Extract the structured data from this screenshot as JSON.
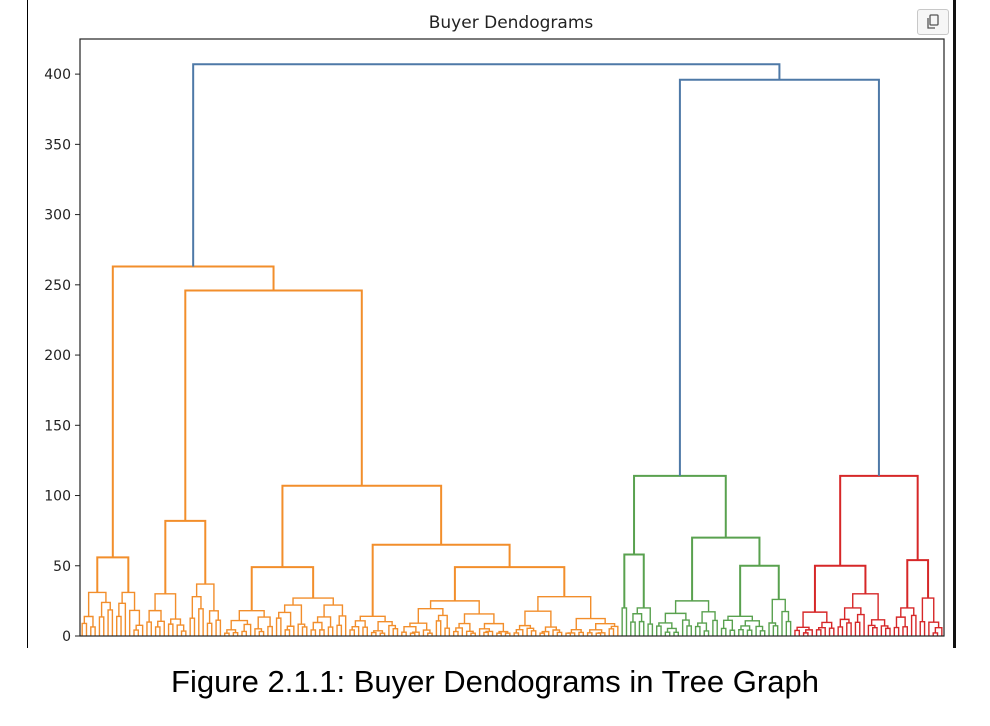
{
  "chart_data": {
    "type": "dendrogram",
    "title": "Buyer Dendograms",
    "xlabel": "",
    "ylabel": "",
    "ylim": [
      0,
      425
    ],
    "y_ticks": [
      0,
      50,
      100,
      150,
      200,
      250,
      300,
      350,
      400
    ],
    "y_tick_labels": [
      "0",
      "50",
      "100",
      "150",
      "200",
      "250",
      "300",
      "350",
      "400"
    ],
    "leaf_count": 200,
    "clusters": [
      {
        "name": "orange",
        "color": "#f28e2b",
        "leaf_range": [
          0,
          125
        ]
      },
      {
        "name": "green",
        "color": "#59a14f",
        "leaf_range": [
          125,
          165
        ]
      },
      {
        "name": "red",
        "color": "#d62728",
        "leaf_range": [
          165,
          200
        ]
      }
    ],
    "link_color": "#4e79a7",
    "merges": [
      {
        "height": 407,
        "color": "#4e79a7",
        "label": "root"
      },
      {
        "height": 396,
        "color": "#4e79a7",
        "label": "green+red"
      },
      {
        "height": 263,
        "color": "#f28e2b"
      },
      {
        "height": 246,
        "color": "#f28e2b"
      },
      {
        "height": 114,
        "color": "#59a14f"
      },
      {
        "height": 114,
        "color": "#d62728"
      },
      {
        "height": 107,
        "color": "#f28e2b"
      },
      {
        "height": 82,
        "color": "#f28e2b"
      },
      {
        "height": 70,
        "color": "#59a14f"
      },
      {
        "height": 65,
        "color": "#f28e2b"
      },
      {
        "height": 56,
        "color": "#f28e2b"
      },
      {
        "height": 54,
        "color": "#d62728"
      },
      {
        "height": 50,
        "color": "#d62728"
      },
      {
        "height": 50,
        "color": "#f28e2b"
      },
      {
        "height": 50,
        "color": "#59a14f"
      },
      {
        "height": 49,
        "color": "#f28e2b"
      }
    ]
  },
  "ui": {
    "copy_icon": "copy-icon"
  },
  "caption": "Figure 2.1.1: Buyer Dendograms in Tree Graph"
}
